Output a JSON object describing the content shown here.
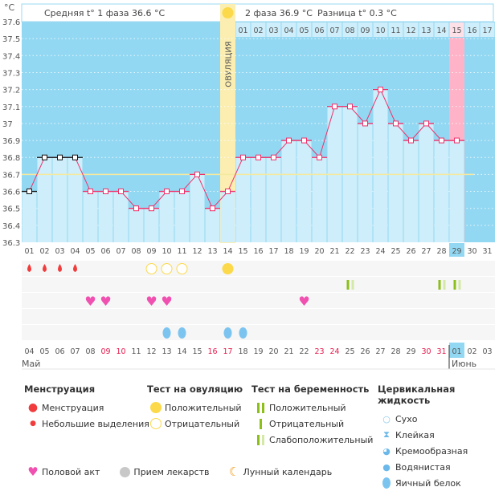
{
  "chart_data": {
    "type": "bar",
    "ylabel": "°C",
    "ylim": [
      36.3,
      37.6
    ],
    "yticks": [
      "37.6",
      "37.5",
      "37.4",
      "37.3",
      "37.2",
      "37.1",
      "37",
      "36.9",
      "36.8",
      "36.7",
      "36.6",
      "36.5",
      "36.4",
      "36.3"
    ],
    "cycle_days": [
      "01",
      "02",
      "03",
      "04",
      "05",
      "06",
      "07",
      "08",
      "09",
      "10",
      "11",
      "12",
      "13",
      "14",
      "15",
      "16",
      "17",
      "18",
      "19",
      "20",
      "21",
      "22",
      "23",
      "24",
      "25",
      "26",
      "27",
      "28",
      "29",
      "30",
      "31"
    ],
    "temperatures": [
      36.6,
      36.8,
      36.8,
      36.8,
      36.6,
      36.6,
      36.6,
      36.5,
      36.5,
      36.6,
      36.6,
      36.7,
      36.5,
      36.6,
      36.8,
      36.8,
      36.8,
      36.9,
      36.9,
      36.8,
      37.1,
      37.1,
      37.0,
      37.2,
      37.0,
      36.9,
      37.0,
      36.9,
      36.9,
      null,
      null
    ],
    "menstruation_marker_days": [
      1,
      2,
      3,
      4
    ],
    "cover_line": 36.7,
    "ovulation_day": 14,
    "ovulation_label": "ОВУЛЯЦИЯ",
    "current_day": 29,
    "highlight_day_label": "15",
    "phase2_days": [
      "01",
      "02",
      "03",
      "04",
      "05",
      "06",
      "07",
      "08",
      "09",
      "10",
      "11",
      "12",
      "13",
      "14",
      "15",
      "16",
      "17"
    ],
    "header": {
      "phase1": "Средняя t° 1 фаза  36.6 °C",
      "phase2": "2 фаза  36.9 °C",
      "difference": "Разница t°  0.3 °C"
    },
    "dates": [
      "04",
      "05",
      "06",
      "07",
      "08",
      "09",
      "10",
      "11",
      "12",
      "13",
      "14",
      "15",
      "16",
      "17",
      "18",
      "19",
      "20",
      "21",
      "22",
      "23",
      "24",
      "25",
      "26",
      "27",
      "28",
      "29",
      "30",
      "31",
      "01",
      "02",
      "03"
    ],
    "weekend_dates_idx": [
      5,
      6,
      12,
      13,
      19,
      20,
      26,
      27
    ],
    "months": [
      "Май",
      "Июнь"
    ],
    "markers": {
      "menstruation": [
        1,
        2,
        3,
        4
      ],
      "ovulation_test_negative": [
        9,
        10,
        11
      ],
      "ovulation_test_positive": [
        14
      ],
      "pregnancy_test_weak_positive": [
        22,
        28,
        29
      ],
      "intercourse": [
        5,
        6,
        9,
        10,
        19
      ],
      "cervical_egg_white": [
        10,
        11,
        14,
        15
      ]
    },
    "colors": {
      "background": "#93d8f2",
      "bar": "#cdeefa",
      "line": "#f0306a",
      "cover": "#f5e9a0",
      "ovulation": "#fbeeb0",
      "today": "#ffb3c8"
    }
  },
  "legend": {
    "menstruation": {
      "title": "Менструация",
      "items": [
        "Менструация",
        "Небольшие выделения"
      ]
    },
    "ovulation": {
      "title": "Тест на овуляцию",
      "items": [
        "Положительный",
        "Отрицательный"
      ]
    },
    "pregnancy": {
      "title": "Тест на беременность",
      "items": [
        "Положительный",
        "Отрицательный",
        "Слабоположительный"
      ]
    },
    "cervical": {
      "title": "Цервикальная жидкость",
      "items": [
        "Сухо",
        "Клейкая",
        "Кремообразная",
        "Водянистая",
        "Яичный белок"
      ]
    },
    "other": [
      "Половой акт",
      "Прием лекарств",
      "Лунный календарь"
    ]
  }
}
